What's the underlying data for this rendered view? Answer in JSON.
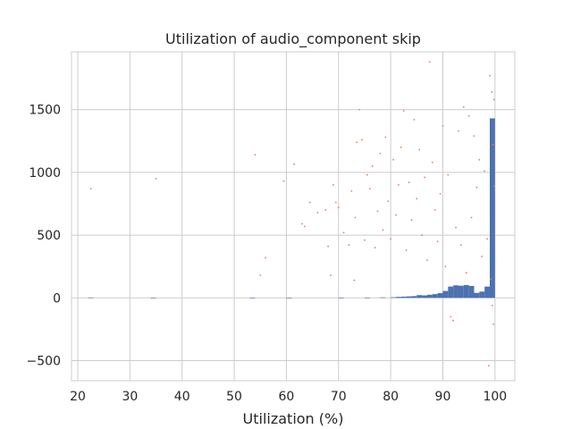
{
  "chart_data": {
    "type": "bar",
    "title": "Utilization of audio_component skip",
    "xlabel": "Utilization (%)",
    "ylabel": "",
    "xlim": [
      18.8,
      103.8
    ],
    "ylim": [
      -660,
      1960
    ],
    "xticks": [
      20,
      30,
      40,
      50,
      60,
      70,
      80,
      90,
      100
    ],
    "yticks": [
      -500,
      0,
      500,
      1000,
      1500
    ],
    "ytick_labels": [
      "−500",
      "0",
      "500",
      "1000",
      "1500"
    ],
    "grid": true,
    "colors": {
      "bars": "#4c72b0",
      "points": "#dd8452",
      "grid": "#cccccc",
      "axes_edge": "#cccccc"
    },
    "series": [
      {
        "type": "bar",
        "bin_width": 1,
        "bins": [
          {
            "x": 22.5,
            "value": 3
          },
          {
            "x": 34.5,
            "value": 1
          },
          {
            "x": 53.5,
            "value": 1
          },
          {
            "x": 60.5,
            "value": 1
          },
          {
            "x": 70.5,
            "value": 1
          },
          {
            "x": 75.5,
            "value": 2
          },
          {
            "x": 78.5,
            "value": 4
          },
          {
            "x": 80.5,
            "value": 5
          },
          {
            "x": 81.5,
            "value": 8
          },
          {
            "x": 82.5,
            "value": 10
          },
          {
            "x": 83.5,
            "value": 12
          },
          {
            "x": 84.5,
            "value": 14
          },
          {
            "x": 85.5,
            "value": 22
          },
          {
            "x": 86.5,
            "value": 20
          },
          {
            "x": 87.5,
            "value": 25
          },
          {
            "x": 88.5,
            "value": 30
          },
          {
            "x": 89.5,
            "value": 38
          },
          {
            "x": 90.5,
            "value": 55
          },
          {
            "x": 91.5,
            "value": 90
          },
          {
            "x": 92.5,
            "value": 100
          },
          {
            "x": 93.5,
            "value": 97
          },
          {
            "x": 94.5,
            "value": 102
          },
          {
            "x": 95.5,
            "value": 95
          },
          {
            "x": 96.5,
            "value": 40
          },
          {
            "x": 97.5,
            "value": 50
          },
          {
            "x": 98.5,
            "value": 90
          },
          {
            "x": 99.5,
            "value": 1430
          }
        ]
      },
      {
        "type": "scatter",
        "points": [
          [
            22.5,
            870
          ],
          [
            35,
            950
          ],
          [
            54,
            1140
          ],
          [
            55,
            180
          ],
          [
            56,
            320
          ],
          [
            59.5,
            930
          ],
          [
            61.5,
            1065
          ],
          [
            63,
            590
          ],
          [
            63.5,
            570
          ],
          [
            64.5,
            760
          ],
          [
            66,
            680
          ],
          [
            67.5,
            700
          ],
          [
            68,
            410
          ],
          [
            68.5,
            180
          ],
          [
            69,
            900
          ],
          [
            69.5,
            760
          ],
          [
            70,
            720
          ],
          [
            71,
            520
          ],
          [
            72,
            420
          ],
          [
            72.5,
            850
          ],
          [
            73,
            140
          ],
          [
            73.2,
            640
          ],
          [
            73.5,
            1240
          ],
          [
            74,
            1500
          ],
          [
            74.5,
            1260
          ],
          [
            75,
            460
          ],
          [
            75.5,
            980
          ],
          [
            76,
            870
          ],
          [
            76.5,
            1050
          ],
          [
            77,
            400
          ],
          [
            77.5,
            690
          ],
          [
            78,
            1150
          ],
          [
            78.5,
            540
          ],
          [
            79,
            1280
          ],
          [
            79.5,
            770
          ],
          [
            80,
            470
          ],
          [
            80.5,
            1100
          ],
          [
            81,
            660
          ],
          [
            81.5,
            900
          ],
          [
            82,
            1200
          ],
          [
            82.5,
            1490
          ],
          [
            83,
            380
          ],
          [
            83.5,
            920
          ],
          [
            84,
            620
          ],
          [
            84.5,
            1420
          ],
          [
            85,
            790
          ],
          [
            85.5,
            1180
          ],
          [
            86,
            500
          ],
          [
            86.5,
            960
          ],
          [
            87,
            300
          ],
          [
            87.5,
            1880
          ],
          [
            88,
            1080
          ],
          [
            88.5,
            700
          ],
          [
            89,
            450
          ],
          [
            89.5,
            830
          ],
          [
            90,
            1370
          ],
          [
            90.5,
            250
          ],
          [
            91,
            980
          ],
          [
            91.5,
            -150
          ],
          [
            92,
            -180
          ],
          [
            92.5,
            560
          ],
          [
            93,
            1330
          ],
          [
            93.5,
            420
          ],
          [
            94,
            1520
          ],
          [
            94.5,
            200
          ],
          [
            95,
            1450
          ],
          [
            95.5,
            640
          ],
          [
            96,
            1290
          ],
          [
            96.5,
            880
          ],
          [
            97,
            1100
          ],
          [
            97.5,
            330
          ],
          [
            98,
            1010
          ],
          [
            98.5,
            470
          ],
          [
            98.8,
            -540
          ],
          [
            99,
            1770
          ],
          [
            99.2,
            150
          ],
          [
            99.4,
            1640
          ],
          [
            99.5,
            -60
          ],
          [
            99.6,
            1220
          ],
          [
            99.7,
            -210
          ],
          [
            99.8,
            1580
          ],
          [
            99.9,
            890
          ]
        ]
      }
    ]
  }
}
